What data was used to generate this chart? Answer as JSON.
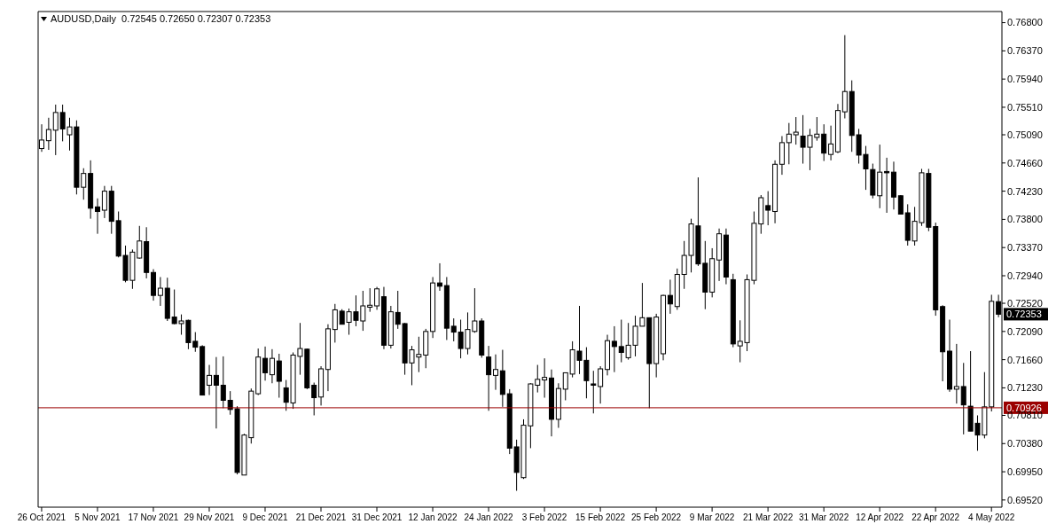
{
  "chart_data": {
    "type": "candlestick",
    "title": "AUDUSD,Daily  0.72545 0.72650 0.72307 0.72353",
    "color": "#000000",
    "categories": [
      "26 Oct 2021",
      null,
      null,
      null,
      null,
      null,
      null,
      null,
      "5 Nov 2021",
      null,
      null,
      null,
      null,
      null,
      null,
      null,
      "17 Nov 2021",
      null,
      null,
      null,
      null,
      null,
      null,
      null,
      "29 Nov 2021",
      null,
      null,
      null,
      null,
      null,
      null,
      null,
      "9 Dec 2021",
      null,
      null,
      null,
      null,
      null,
      null,
      null,
      "21 Dec 2021",
      null,
      null,
      null,
      null,
      null,
      null,
      null,
      "31 Dec 2021",
      null,
      null,
      null,
      null,
      null,
      null,
      null,
      "12 Jan 2022",
      null,
      null,
      null,
      null,
      null,
      null,
      null,
      "24 Jan 2022",
      null,
      null,
      null,
      null,
      null,
      null,
      null,
      "3 Feb 2022",
      null,
      null,
      null,
      null,
      null,
      null,
      null,
      "15 Feb 2022",
      null,
      null,
      null,
      null,
      null,
      null,
      null,
      "25 Feb 2022",
      null,
      null,
      null,
      null,
      null,
      null,
      null,
      "9 Mar 2022",
      null,
      null,
      null,
      null,
      null,
      null,
      null,
      "21 Mar 2022",
      null,
      null,
      null,
      null,
      null,
      null,
      null,
      "31 Mar 2022",
      null,
      null,
      null,
      null,
      null,
      null,
      null,
      "12 Apr 2022",
      null,
      null,
      null,
      null,
      null,
      null,
      null,
      "22 Apr 2022",
      null,
      null,
      null,
      null,
      null,
      null,
      null,
      "4 May 2022",
      null
    ],
    "ohlc": [
      [
        0.7488,
        0.7525,
        0.7483,
        0.7501
      ],
      [
        0.75,
        0.7535,
        0.7486,
        0.7517
      ],
      [
        0.7516,
        0.7555,
        0.7478,
        0.7543
      ],
      [
        0.7543,
        0.7555,
        0.7499,
        0.7518
      ],
      [
        0.7509,
        0.7535,
        0.7485,
        0.7521
      ],
      [
        0.7521,
        0.7531,
        0.7418,
        0.7429
      ],
      [
        0.7429,
        0.7458,
        0.741,
        0.745
      ],
      [
        0.745,
        0.747,
        0.7381,
        0.7397
      ],
      [
        0.7399,
        0.7412,
        0.7358,
        0.7392
      ],
      [
        0.7394,
        0.7431,
        0.7382,
        0.7423
      ],
      [
        0.7423,
        0.7431,
        0.7358,
        0.7377
      ],
      [
        0.7378,
        0.7392,
        0.7322,
        0.7324
      ],
      [
        0.7325,
        0.734,
        0.7284,
        0.7287
      ],
      [
        0.7287,
        0.7334,
        0.7274,
        0.733
      ],
      [
        0.7321,
        0.737,
        0.732,
        0.7347
      ],
      [
        0.7346,
        0.7368,
        0.729,
        0.7299
      ],
      [
        0.7299,
        0.7304,
        0.7256,
        0.7264
      ],
      [
        0.7264,
        0.7292,
        0.7248,
        0.7275
      ],
      [
        0.7275,
        0.7291,
        0.7225,
        0.7229
      ],
      [
        0.7231,
        0.7273,
        0.722,
        0.7221
      ],
      [
        0.7221,
        0.7235,
        0.7204,
        0.7225
      ],
      [
        0.7226,
        0.7227,
        0.7182,
        0.7192
      ],
      [
        0.7194,
        0.7208,
        0.7178,
        0.7185
      ],
      [
        0.7186,
        0.7188,
        0.7112,
        0.7112
      ],
      [
        0.7127,
        0.7158,
        0.7112,
        0.7142
      ],
      [
        0.7142,
        0.717,
        0.7061,
        0.7127
      ],
      [
        0.7127,
        0.7171,
        0.7092,
        0.7104
      ],
      [
        0.7104,
        0.7118,
        0.7082,
        0.709
      ],
      [
        0.7091,
        0.7095,
        0.6991,
        0.6994
      ],
      [
        0.699,
        0.7053,
        0.699,
        0.7051
      ],
      [
        0.7047,
        0.7122,
        0.7038,
        0.7118
      ],
      [
        0.7114,
        0.7183,
        0.7112,
        0.717
      ],
      [
        0.7168,
        0.7186,
        0.7134,
        0.7146
      ],
      [
        0.7143,
        0.7182,
        0.713,
        0.7168
      ],
      [
        0.7164,
        0.7175,
        0.7108,
        0.7133
      ],
      [
        0.7123,
        0.7135,
        0.7088,
        0.7101
      ],
      [
        0.71,
        0.7177,
        0.7091,
        0.7173
      ],
      [
        0.7171,
        0.7222,
        0.7143,
        0.7183
      ],
      [
        0.7182,
        0.7183,
        0.7121,
        0.7123
      ],
      [
        0.7127,
        0.7131,
        0.7081,
        0.7108
      ],
      [
        0.7109,
        0.7156,
        0.7096,
        0.7152
      ],
      [
        0.7151,
        0.722,
        0.7118,
        0.7213
      ],
      [
        0.7212,
        0.7251,
        0.7192,
        0.7242
      ],
      [
        0.724,
        0.7243,
        0.722,
        0.722
      ],
      [
        0.7223,
        0.7244,
        0.7204,
        0.7239
      ],
      [
        0.7239,
        0.7264,
        0.7217,
        0.7226
      ],
      [
        0.7225,
        0.7271,
        0.721,
        0.7248
      ],
      [
        0.7246,
        0.7275,
        0.7239,
        0.7249
      ],
      [
        0.7248,
        0.7277,
        0.7242,
        0.7274
      ],
      [
        0.7262,
        0.7277,
        0.7182,
        0.7188
      ],
      [
        0.7188,
        0.7248,
        0.7183,
        0.7239
      ],
      [
        0.7238,
        0.7271,
        0.7213,
        0.722
      ],
      [
        0.7221,
        0.7222,
        0.7143,
        0.7161
      ],
      [
        0.7161,
        0.7187,
        0.7127,
        0.7181
      ],
      [
        0.717,
        0.7201,
        0.7147,
        0.7174
      ],
      [
        0.7173,
        0.7213,
        0.7153,
        0.7209
      ],
      [
        0.7209,
        0.7292,
        0.7199,
        0.7283
      ],
      [
        0.7283,
        0.7313,
        0.7271,
        0.7278
      ],
      [
        0.7279,
        0.7292,
        0.7196,
        0.7214
      ],
      [
        0.7217,
        0.7229,
        0.7194,
        0.7208
      ],
      [
        0.7208,
        0.7227,
        0.7168,
        0.7183
      ],
      [
        0.7183,
        0.7238,
        0.7174,
        0.7212
      ],
      [
        0.7209,
        0.7275,
        0.7207,
        0.7225
      ],
      [
        0.7225,
        0.7229,
        0.7169,
        0.7173
      ],
      [
        0.717,
        0.7187,
        0.7088,
        0.7143
      ],
      [
        0.7142,
        0.7174,
        0.712,
        0.7151
      ],
      [
        0.7149,
        0.7181,
        0.7094,
        0.7113
      ],
      [
        0.7114,
        0.7121,
        0.7022,
        0.7031
      ],
      [
        0.7033,
        0.7044,
        0.6966,
        0.6994
      ],
      [
        0.6986,
        0.7075,
        0.6984,
        0.7066
      ],
      [
        0.7065,
        0.713,
        0.7031,
        0.7129
      ],
      [
        0.7127,
        0.7158,
        0.7116,
        0.7136
      ],
      [
        0.7135,
        0.7168,
        0.7108,
        0.7139
      ],
      [
        0.7138,
        0.7151,
        0.7049,
        0.7075
      ],
      [
        0.7075,
        0.713,
        0.7062,
        0.7122
      ],
      [
        0.7121,
        0.7146,
        0.7104,
        0.7146
      ],
      [
        0.7144,
        0.7194,
        0.7139,
        0.7181
      ],
      [
        0.7179,
        0.7248,
        0.7144,
        0.7165
      ],
      [
        0.7165,
        0.7185,
        0.7107,
        0.7134
      ],
      [
        0.7129,
        0.7149,
        0.7084,
        0.7127
      ],
      [
        0.7125,
        0.7156,
        0.7099,
        0.7152
      ],
      [
        0.7151,
        0.7204,
        0.7142,
        0.7195
      ],
      [
        0.7194,
        0.7217,
        0.7147,
        0.7186
      ],
      [
        0.7186,
        0.7227,
        0.7162,
        0.7177
      ],
      [
        0.7169,
        0.7222,
        0.7166,
        0.7188
      ],
      [
        0.7188,
        0.7233,
        0.7171,
        0.7217
      ],
      [
        0.7217,
        0.7283,
        0.7217,
        0.723
      ],
      [
        0.723,
        0.723,
        0.7092,
        0.716
      ],
      [
        0.716,
        0.7236,
        0.7139,
        0.7231
      ],
      [
        0.7175,
        0.7265,
        0.7165,
        0.7264
      ],
      [
        0.7264,
        0.7288,
        0.7236,
        0.7251
      ],
      [
        0.7247,
        0.7305,
        0.7242,
        0.7296
      ],
      [
        0.7296,
        0.7347,
        0.7274,
        0.7325
      ],
      [
        0.7325,
        0.7381,
        0.7299,
        0.7373
      ],
      [
        0.737,
        0.7444,
        0.7309,
        0.7312
      ],
      [
        0.7313,
        0.7347,
        0.7243,
        0.7269
      ],
      [
        0.7269,
        0.7336,
        0.7261,
        0.732
      ],
      [
        0.7318,
        0.7366,
        0.7286,
        0.7358
      ],
      [
        0.7356,
        0.7366,
        0.7281,
        0.7292
      ],
      [
        0.7288,
        0.7297,
        0.7185,
        0.719
      ],
      [
        0.7187,
        0.7226,
        0.7162,
        0.7194
      ],
      [
        0.7192,
        0.7296,
        0.7179,
        0.7288
      ],
      [
        0.7287,
        0.7392,
        0.7281,
        0.7374
      ],
      [
        0.7373,
        0.7417,
        0.7358,
        0.7413
      ],
      [
        0.7401,
        0.7423,
        0.7371,
        0.7394
      ],
      [
        0.7392,
        0.747,
        0.7374,
        0.7464
      ],
      [
        0.7464,
        0.7507,
        0.7448,
        0.7497
      ],
      [
        0.7497,
        0.7527,
        0.7464,
        0.751
      ],
      [
        0.7509,
        0.7536,
        0.7494,
        0.7513
      ],
      [
        0.7507,
        0.7539,
        0.7465,
        0.749
      ],
      [
        0.749,
        0.7518,
        0.7455,
        0.7508
      ],
      [
        0.7505,
        0.7536,
        0.75,
        0.751
      ],
      [
        0.751,
        0.7525,
        0.7469,
        0.7481
      ],
      [
        0.7479,
        0.7523,
        0.747,
        0.7495
      ],
      [
        0.7483,
        0.7556,
        0.7481,
        0.7546
      ],
      [
        0.7544,
        0.7661,
        0.7534,
        0.7575
      ],
      [
        0.7575,
        0.7592,
        0.7483,
        0.7508
      ],
      [
        0.7509,
        0.7518,
        0.7465,
        0.7478
      ],
      [
        0.7479,
        0.7492,
        0.7425,
        0.7457
      ],
      [
        0.7456,
        0.7465,
        0.7412,
        0.7417
      ],
      [
        0.7416,
        0.7494,
        0.7397,
        0.7452
      ],
      [
        0.7453,
        0.7474,
        0.739,
        0.7451
      ],
      [
        0.7452,
        0.7468,
        0.7395,
        0.7414
      ],
      [
        0.7416,
        0.7417,
        0.7388,
        0.7388
      ],
      [
        0.739,
        0.7403,
        0.734,
        0.7348
      ],
      [
        0.7347,
        0.7399,
        0.734,
        0.7377
      ],
      [
        0.7375,
        0.7457,
        0.737,
        0.7451
      ],
      [
        0.745,
        0.7457,
        0.7362,
        0.7368
      ],
      [
        0.7369,
        0.7375,
        0.7233,
        0.7242
      ],
      [
        0.7247,
        0.7249,
        0.7133,
        0.7178
      ],
      [
        0.7179,
        0.7227,
        0.7117,
        0.7121
      ],
      [
        0.7121,
        0.719,
        0.7099,
        0.7125
      ],
      [
        0.7125,
        0.7161,
        0.7052,
        0.7097
      ],
      [
        0.7095,
        0.7179,
        0.7057,
        0.7057
      ],
      [
        0.7069,
        0.7081,
        0.7027,
        0.7051
      ],
      [
        0.7051,
        0.7147,
        0.7046,
        0.7094
      ],
      [
        0.7094,
        0.7265,
        0.7087,
        0.7255
      ],
      [
        0.72545,
        0.7265,
        0.72307,
        0.72353
      ]
    ],
    "ylim": [
      0.6941,
      0.7697
    ],
    "yticks": [
      {
        "value": 0.6952,
        "label": "0.69520"
      },
      {
        "value": 0.6995,
        "label": "0.69950"
      },
      {
        "value": 0.7038,
        "label": "0.70380"
      },
      {
        "value": 0.7081,
        "label": "0.70810"
      },
      {
        "value": 0.7123,
        "label": "0.71230"
      },
      {
        "value": 0.7166,
        "label": "0.71660"
      },
      {
        "value": 0.7209,
        "label": "0.72090"
      },
      {
        "value": 0.7252,
        "label": "0.72520"
      },
      {
        "value": 0.7294,
        "label": "0.72940"
      },
      {
        "value": 0.7337,
        "label": "0.73370"
      },
      {
        "value": 0.738,
        "label": "0.73800"
      },
      {
        "value": 0.7423,
        "label": "0.74230"
      },
      {
        "value": 0.7466,
        "label": "0.74660"
      },
      {
        "value": 0.7509,
        "label": "0.75090"
      },
      {
        "value": 0.7551,
        "label": "0.75510"
      },
      {
        "value": 0.7594,
        "label": "0.75940"
      },
      {
        "value": 0.7637,
        "label": "0.76370"
      },
      {
        "value": 0.768,
        "label": "0.76800"
      }
    ],
    "ref_lines": [
      {
        "axis": "y",
        "value": 0.70926,
        "label": "0.70926",
        "color": "#9b0000"
      }
    ],
    "annotations": [
      "0.72353"
    ]
  }
}
